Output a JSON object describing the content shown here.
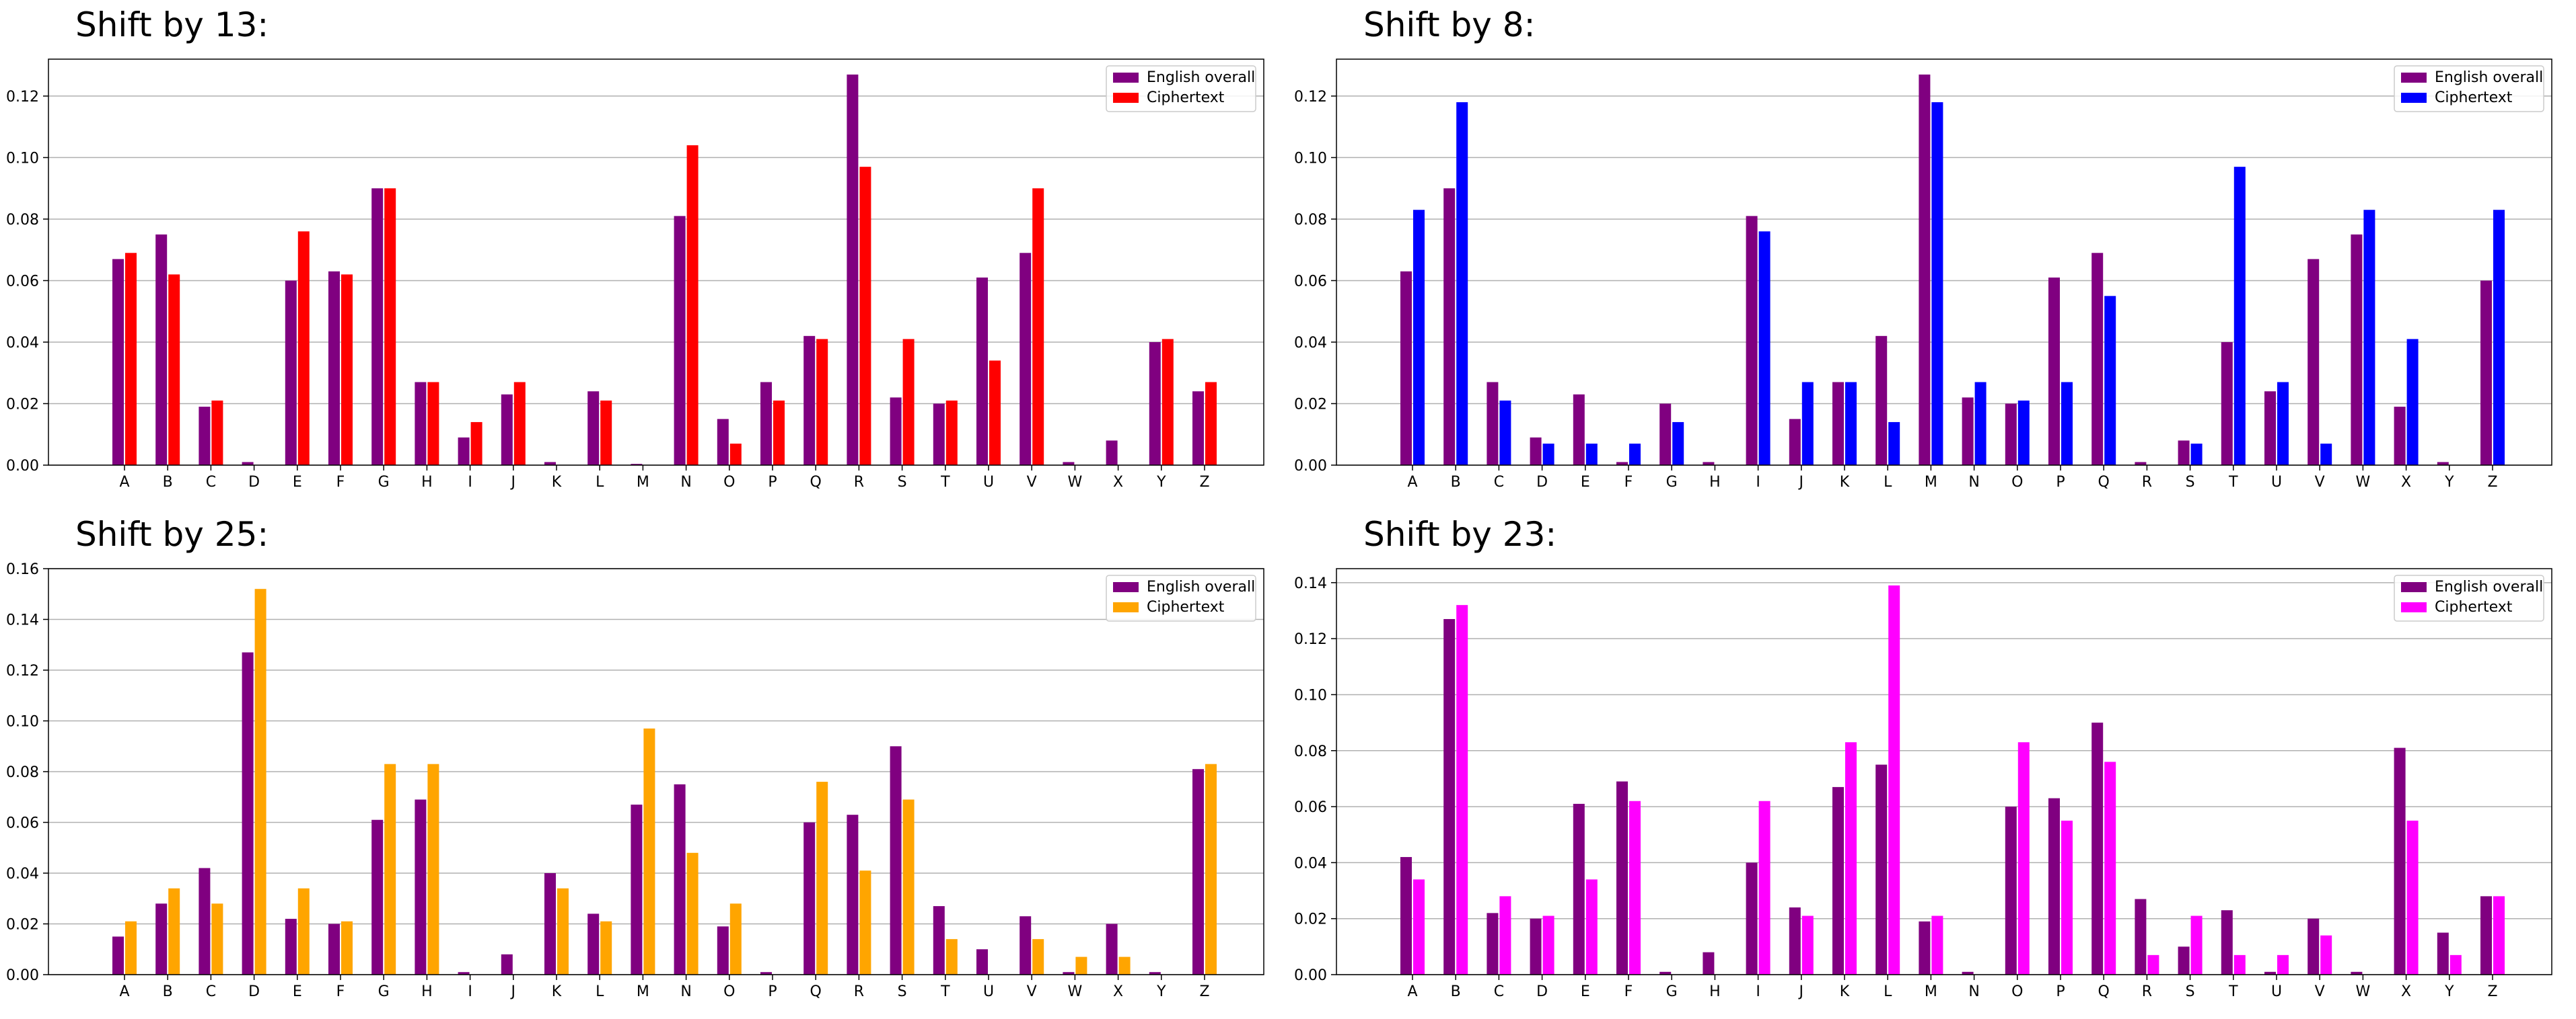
{
  "panels": [
    {
      "title": "Shift by 13:"
    },
    {
      "title": "Shift by 8:"
    },
    {
      "title": "Shift by 25:"
    },
    {
      "title": "Shift by 23:"
    }
  ],
  "chart_data": [
    {
      "type": "bar",
      "title": "Shift by 13:",
      "categories": [
        "A",
        "B",
        "C",
        "D",
        "E",
        "F",
        "G",
        "H",
        "I",
        "J",
        "K",
        "L",
        "M",
        "N",
        "O",
        "P",
        "Q",
        "R",
        "S",
        "T",
        "U",
        "V",
        "W",
        "X",
        "Y",
        "Z"
      ],
      "ylim": [
        0,
        0.132
      ],
      "yticks": [
        "0.00",
        "0.02",
        "0.04",
        "0.06",
        "0.08",
        "0.10",
        "0.12"
      ],
      "ytick_values": [
        0,
        0.02,
        0.04,
        0.06,
        0.08,
        0.1,
        0.12
      ],
      "grid": "horizontal",
      "legend_position": "top-right",
      "series": [
        {
          "name": "English overall",
          "color": "#800080",
          "values": [
            0.067,
            0.075,
            0.019,
            0.001,
            0.06,
            0.063,
            0.09,
            0.027,
            0.009,
            0.023,
            0.001,
            0.024,
            0.0004,
            0.081,
            0.015,
            0.027,
            0.042,
            0.127,
            0.022,
            0.02,
            0.061,
            0.069,
            0.001,
            0.008,
            0.04,
            0.024
          ]
        },
        {
          "name": "Ciphertext",
          "color": "#ff0000",
          "values": [
            0.069,
            0.062,
            0.021,
            0,
            0.076,
            0.062,
            0.09,
            0.027,
            0.014,
            0.027,
            0,
            0.021,
            0,
            0.104,
            0.007,
            0.021,
            0.041,
            0.097,
            0.041,
            0.021,
            0.034,
            0.09,
            0,
            0,
            0.041,
            0.027
          ]
        }
      ]
    },
    {
      "type": "bar",
      "title": "Shift by 8:",
      "categories": [
        "A",
        "B",
        "C",
        "D",
        "E",
        "F",
        "G",
        "H",
        "I",
        "J",
        "K",
        "L",
        "M",
        "N",
        "O",
        "P",
        "Q",
        "R",
        "S",
        "T",
        "U",
        "V",
        "W",
        "X",
        "Y",
        "Z"
      ],
      "ylim": [
        0,
        0.132
      ],
      "yticks": [
        "0.00",
        "0.02",
        "0.04",
        "0.06",
        "0.08",
        "0.10",
        "0.12"
      ],
      "ytick_values": [
        0,
        0.02,
        0.04,
        0.06,
        0.08,
        0.1,
        0.12
      ],
      "grid": "horizontal",
      "legend_position": "top-right",
      "series": [
        {
          "name": "English overall",
          "color": "#800080",
          "values": [
            0.063,
            0.09,
            0.027,
            0.009,
            0.023,
            0.001,
            0.02,
            0.001,
            0.081,
            0.015,
            0.027,
            0.042,
            0.127,
            0.022,
            0.02,
            0.061,
            0.069,
            0.001,
            0.008,
            0.04,
            0.024,
            0.067,
            0.075,
            0.019,
            0.001,
            0.06
          ]
        },
        {
          "name": "Ciphertext",
          "color": "#0000ff",
          "values": [
            0.083,
            0.118,
            0.021,
            0.007,
            0.007,
            0.007,
            0.014,
            0,
            0.076,
            0.027,
            0.027,
            0.014,
            0.118,
            0.027,
            0.021,
            0.027,
            0.055,
            0,
            0.007,
            0.097,
            0.027,
            0.007,
            0.083,
            0.041,
            0,
            0.083
          ]
        }
      ]
    },
    {
      "type": "bar",
      "title": "Shift by 25:",
      "categories": [
        "A",
        "B",
        "C",
        "D",
        "E",
        "F",
        "G",
        "H",
        "I",
        "J",
        "K",
        "L",
        "M",
        "N",
        "O",
        "P",
        "Q",
        "R",
        "S",
        "T",
        "U",
        "V",
        "W",
        "X",
        "Y",
        "Z"
      ],
      "ylim": [
        0,
        0.16
      ],
      "yticks": [
        "0.00",
        "0.02",
        "0.04",
        "0.06",
        "0.08",
        "0.10",
        "0.12",
        "0.14",
        "0.16"
      ],
      "ytick_values": [
        0,
        0.02,
        0.04,
        0.06,
        0.08,
        0.1,
        0.12,
        0.14,
        0.16
      ],
      "grid": "horizontal",
      "legend_position": "top-right",
      "series": [
        {
          "name": "English overall",
          "color": "#800080",
          "values": [
            0.015,
            0.028,
            0.042,
            0.127,
            0.022,
            0.02,
            0.061,
            0.069,
            0.001,
            0.008,
            0.04,
            0.024,
            0.067,
            0.075,
            0.019,
            0.001,
            0.06,
            0.063,
            0.09,
            0.027,
            0.01,
            0.023,
            0.001,
            0.02,
            0.001,
            0.081
          ]
        },
        {
          "name": "Ciphertext",
          "color": "#ffa500",
          "values": [
            0.021,
            0.034,
            0.028,
            0.152,
            0.034,
            0.021,
            0.083,
            0.083,
            0,
            0,
            0.034,
            0.021,
            0.097,
            0.048,
            0.028,
            0,
            0.076,
            0.041,
            0.069,
            0.014,
            0,
            0.014,
            0.007,
            0.007,
            0,
            0.083
          ]
        }
      ]
    },
    {
      "type": "bar",
      "title": "Shift by 23:",
      "categories": [
        "A",
        "B",
        "C",
        "D",
        "E",
        "F",
        "G",
        "H",
        "I",
        "J",
        "K",
        "L",
        "M",
        "N",
        "O",
        "P",
        "Q",
        "R",
        "S",
        "T",
        "U",
        "V",
        "W",
        "X",
        "Y",
        "Z"
      ],
      "ylim": [
        0,
        0.145
      ],
      "yticks": [
        "0.00",
        "0.02",
        "0.04",
        "0.06",
        "0.08",
        "0.10",
        "0.12",
        "0.14"
      ],
      "ytick_values": [
        0,
        0.02,
        0.04,
        0.06,
        0.08,
        0.1,
        0.12,
        0.14
      ],
      "grid": "horizontal",
      "legend_position": "top-right",
      "series": [
        {
          "name": "English overall",
          "color": "#800080",
          "values": [
            0.042,
            0.127,
            0.022,
            0.02,
            0.061,
            0.069,
            0.001,
            0.008,
            0.04,
            0.024,
            0.067,
            0.075,
            0.019,
            0.001,
            0.06,
            0.063,
            0.09,
            0.027,
            0.01,
            0.023,
            0.001,
            0.02,
            0.001,
            0.081,
            0.015,
            0.028
          ]
        },
        {
          "name": "Ciphertext",
          "color": "#ff00ff",
          "values": [
            0.034,
            0.132,
            0.028,
            0.021,
            0.034,
            0.062,
            0,
            0,
            0.062,
            0.021,
            0.083,
            0.139,
            0.021,
            0,
            0.083,
            0.055,
            0.076,
            0.007,
            0.021,
            0.007,
            0.007,
            0.014,
            0,
            0.055,
            0.007,
            0.028
          ]
        }
      ]
    }
  ]
}
